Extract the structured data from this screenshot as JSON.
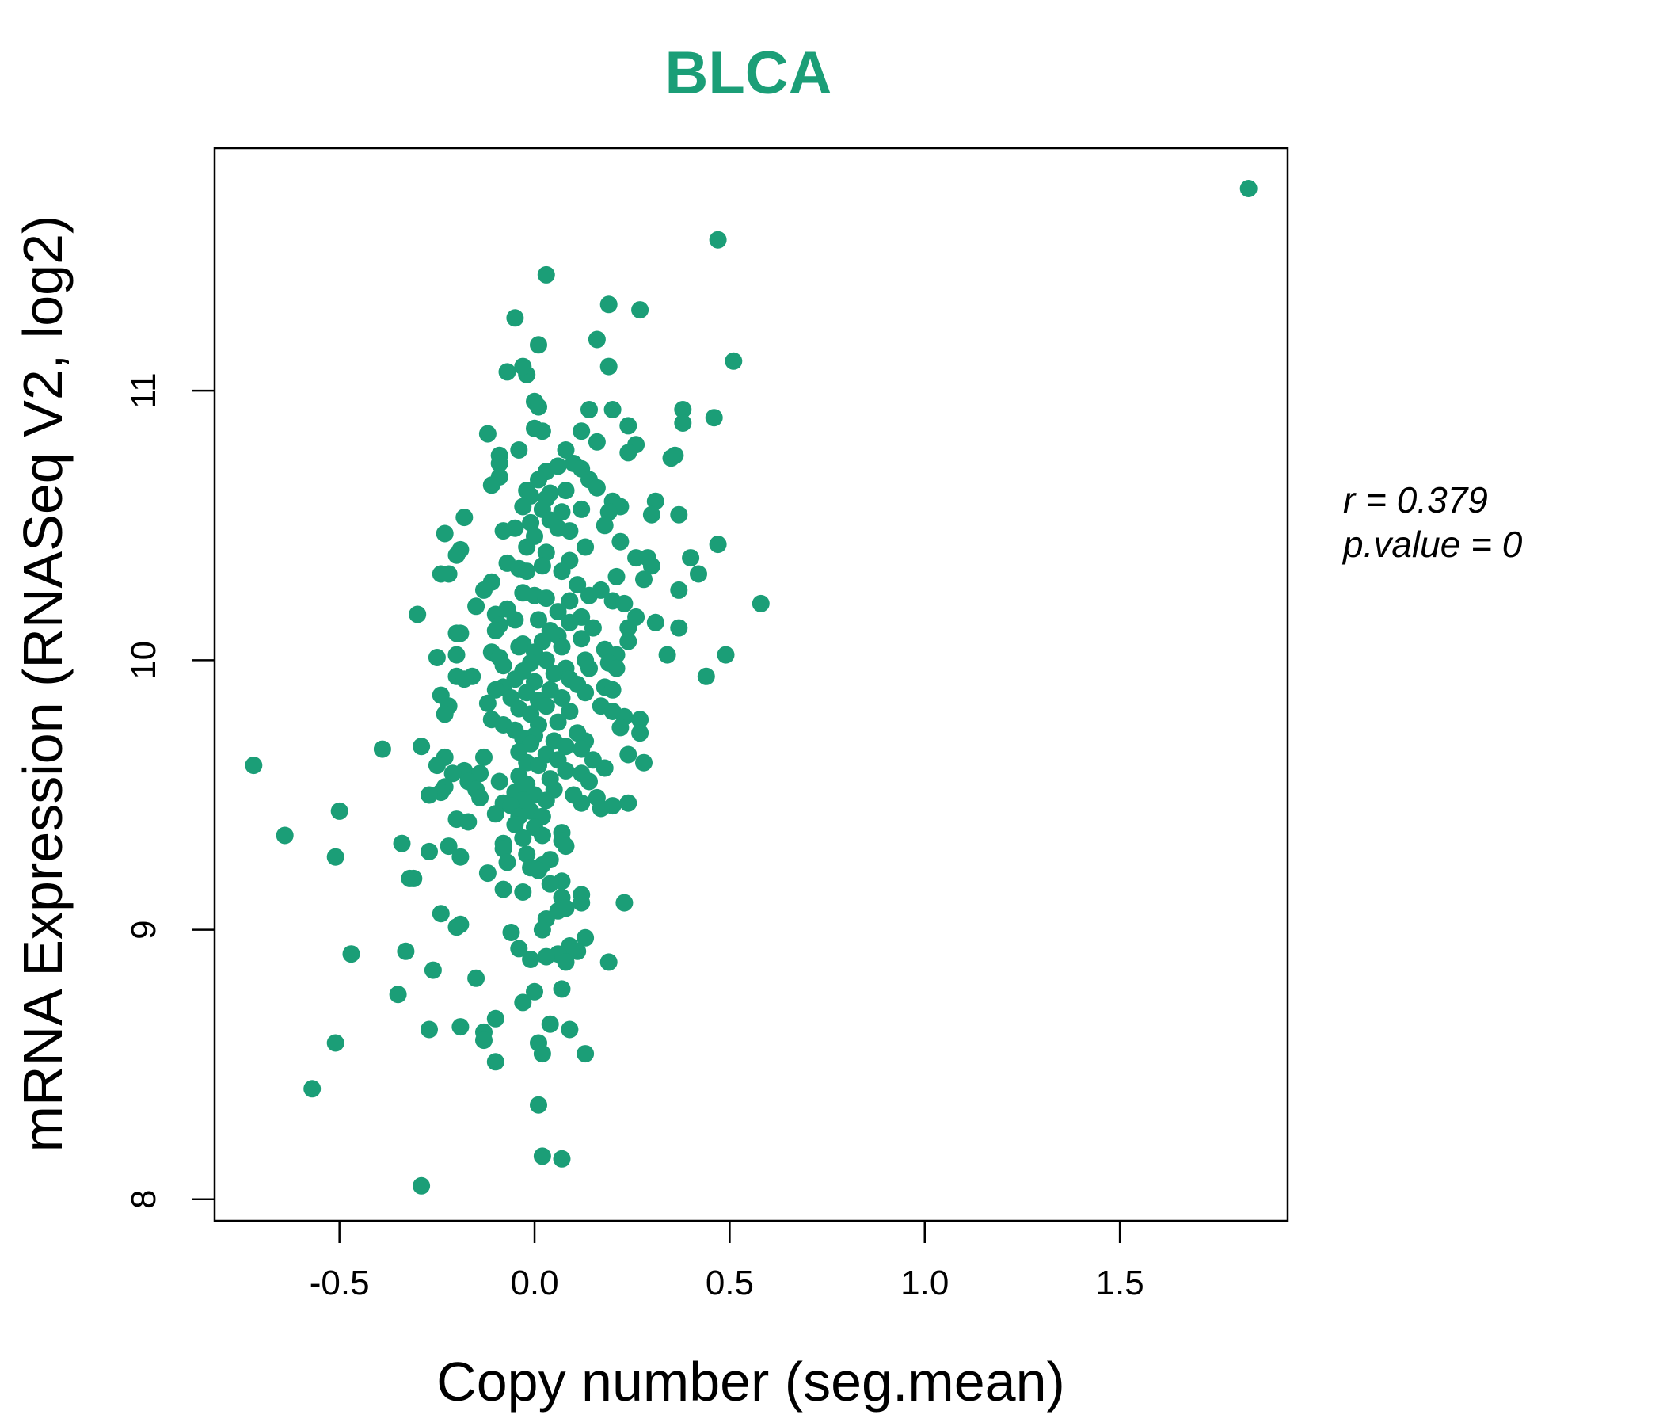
{
  "chart_data": {
    "type": "scatter",
    "title": "BLCA",
    "xlabel": "Copy number (seg.mean)",
    "ylabel": "mRNA Expression (RNASeq V2, log2)",
    "xlim": [
      -0.82,
      1.93
    ],
    "ylim": [
      7.92,
      11.9
    ],
    "x_ticks": [
      -0.5,
      0.0,
      0.5,
      1.0,
      1.5
    ],
    "x_tick_labels": [
      "-0.5",
      "0.0",
      "0.5",
      "1.0",
      "1.5"
    ],
    "y_ticks": [
      8,
      9,
      10,
      11
    ],
    "y_tick_labels": [
      "8",
      "9",
      "10",
      "11"
    ],
    "grid": false,
    "stats": {
      "r_label": "r = 0.379",
      "p_label": "p.value = 0"
    },
    "color": "#1b9e77",
    "points": [
      {
        "x": 1.83,
        "y": 11.75
      },
      {
        "x": 0.47,
        "y": 11.56
      },
      {
        "x": 0.03,
        "y": 11.43
      },
      {
        "x": 0.19,
        "y": 11.32
      },
      {
        "x": 0.27,
        "y": 11.3
      },
      {
        "x": -0.05,
        "y": 11.27
      },
      {
        "x": 0.16,
        "y": 11.19
      },
      {
        "x": 0.01,
        "y": 11.17
      },
      {
        "x": 0.51,
        "y": 11.11
      },
      {
        "x": 0.19,
        "y": 11.09
      },
      {
        "x": -0.07,
        "y": 11.07
      },
      {
        "x": -0.02,
        "y": 11.06
      },
      {
        "x": -0.03,
        "y": 11.09
      },
      {
        "x": 0.0,
        "y": 10.96
      },
      {
        "x": 0.01,
        "y": 10.94
      },
      {
        "x": 0.14,
        "y": 10.93
      },
      {
        "x": 0.2,
        "y": 10.93
      },
      {
        "x": 0.38,
        "y": 10.93
      },
      {
        "x": 0.46,
        "y": 10.9
      },
      {
        "x": 0.24,
        "y": 10.87
      },
      {
        "x": 0.38,
        "y": 10.88
      },
      {
        "x": 0.0,
        "y": 10.86
      },
      {
        "x": 0.02,
        "y": 10.85
      },
      {
        "x": 0.12,
        "y": 10.85
      },
      {
        "x": -0.12,
        "y": 10.84
      },
      {
        "x": 0.16,
        "y": 10.81
      },
      {
        "x": 0.26,
        "y": 10.8
      },
      {
        "x": -0.04,
        "y": 10.78
      },
      {
        "x": 0.08,
        "y": 10.78
      },
      {
        "x": 0.24,
        "y": 10.77
      },
      {
        "x": 0.36,
        "y": 10.76
      },
      {
        "x": -0.09,
        "y": 10.76
      },
      {
        "x": 0.35,
        "y": 10.75
      },
      {
        "x": 0.1,
        "y": 10.73
      },
      {
        "x": -0.09,
        "y": 10.73
      },
      {
        "x": 0.06,
        "y": 10.72
      },
      {
        "x": 0.12,
        "y": 10.71
      },
      {
        "x": 0.03,
        "y": 10.7
      },
      {
        "x": -0.09,
        "y": 10.68
      },
      {
        "x": 0.14,
        "y": 10.67
      },
      {
        "x": 0.01,
        "y": 10.67
      },
      {
        "x": -0.11,
        "y": 10.65
      },
      {
        "x": 0.16,
        "y": 10.64
      },
      {
        "x": -0.02,
        "y": 10.63
      },
      {
        "x": 0.08,
        "y": 10.63
      },
      {
        "x": 0.04,
        "y": 10.62
      },
      {
        "x": -0.01,
        "y": 10.61
      },
      {
        "x": 0.03,
        "y": 10.6
      },
      {
        "x": 0.2,
        "y": 10.59
      },
      {
        "x": 0.31,
        "y": 10.59
      },
      {
        "x": 0.22,
        "y": 10.57
      },
      {
        "x": -0.03,
        "y": 10.57
      },
      {
        "x": 0.02,
        "y": 10.56
      },
      {
        "x": 0.12,
        "y": 10.56
      },
      {
        "x": 0.07,
        "y": 10.55
      },
      {
        "x": 0.19,
        "y": 10.55
      },
      {
        "x": 0.3,
        "y": 10.54
      },
      {
        "x": 0.37,
        "y": 10.54
      },
      {
        "x": -0.18,
        "y": 10.53
      },
      {
        "x": 0.04,
        "y": 10.52
      },
      {
        "x": -0.01,
        "y": 10.51
      },
      {
        "x": 0.18,
        "y": 10.5
      },
      {
        "x": -0.05,
        "y": 10.49
      },
      {
        "x": 0.06,
        "y": 10.49
      },
      {
        "x": -0.08,
        "y": 10.48
      },
      {
        "x": 0.09,
        "y": 10.48
      },
      {
        "x": -0.23,
        "y": 10.47
      },
      {
        "x": 0.0,
        "y": 10.46
      },
      {
        "x": 0.22,
        "y": 10.44
      },
      {
        "x": 0.47,
        "y": 10.43
      },
      {
        "x": -0.02,
        "y": 10.42
      },
      {
        "x": 0.13,
        "y": 10.42
      },
      {
        "x": -0.19,
        "y": 10.41
      },
      {
        "x": 0.03,
        "y": 10.4
      },
      {
        "x": -0.2,
        "y": 10.39
      },
      {
        "x": 0.26,
        "y": 10.38
      },
      {
        "x": 0.29,
        "y": 10.38
      },
      {
        "x": 0.4,
        "y": 10.38
      },
      {
        "x": 0.09,
        "y": 10.37
      },
      {
        "x": -0.07,
        "y": 10.36
      },
      {
        "x": 0.02,
        "y": 10.35
      },
      {
        "x": 0.3,
        "y": 10.35
      },
      {
        "x": -0.04,
        "y": 10.34
      },
      {
        "x": -0.02,
        "y": 10.33
      },
      {
        "x": 0.07,
        "y": 10.33
      },
      {
        "x": -0.24,
        "y": 10.32
      },
      {
        "x": -0.22,
        "y": 10.32
      },
      {
        "x": 0.42,
        "y": 10.32
      },
      {
        "x": 0.21,
        "y": 10.31
      },
      {
        "x": 0.28,
        "y": 10.3
      },
      {
        "x": -0.11,
        "y": 10.29
      },
      {
        "x": 0.11,
        "y": 10.28
      },
      {
        "x": -0.13,
        "y": 10.26
      },
      {
        "x": 0.37,
        "y": 10.26
      },
      {
        "x": 0.17,
        "y": 10.26
      },
      {
        "x": -0.03,
        "y": 10.25
      },
      {
        "x": 0.14,
        "y": 10.24
      },
      {
        "x": 0.0,
        "y": 10.24
      },
      {
        "x": 0.03,
        "y": 10.23
      },
      {
        "x": 0.09,
        "y": 10.22
      },
      {
        "x": 0.2,
        "y": 10.22
      },
      {
        "x": 0.23,
        "y": 10.21
      },
      {
        "x": 0.58,
        "y": 10.21
      },
      {
        "x": -0.15,
        "y": 10.2
      },
      {
        "x": -0.07,
        "y": 10.19
      },
      {
        "x": 0.06,
        "y": 10.18
      },
      {
        "x": -0.1,
        "y": 10.17
      },
      {
        "x": -0.3,
        "y": 10.17
      },
      {
        "x": 0.12,
        "y": 10.16
      },
      {
        "x": 0.26,
        "y": 10.16
      },
      {
        "x": -0.05,
        "y": 10.15
      },
      {
        "x": 0.01,
        "y": 10.15
      },
      {
        "x": 0.31,
        "y": 10.14
      },
      {
        "x": 0.09,
        "y": 10.14
      },
      {
        "x": -0.09,
        "y": 10.13
      },
      {
        "x": 0.15,
        "y": 10.12
      },
      {
        "x": 0.24,
        "y": 10.12
      },
      {
        "x": 0.37,
        "y": 10.12
      },
      {
        "x": -0.1,
        "y": 10.11
      },
      {
        "x": 0.04,
        "y": 10.11
      },
      {
        "x": -0.19,
        "y": 10.1
      },
      {
        "x": -0.2,
        "y": 10.1
      },
      {
        "x": 0.06,
        "y": 10.09
      },
      {
        "x": 0.12,
        "y": 10.08
      },
      {
        "x": 0.02,
        "y": 10.07
      },
      {
        "x": 0.24,
        "y": 10.07
      },
      {
        "x": -0.03,
        "y": 10.06
      },
      {
        "x": -0.04,
        "y": 10.05
      },
      {
        "x": 0.07,
        "y": 10.05
      },
      {
        "x": 0.18,
        "y": 10.04
      },
      {
        "x": -0.11,
        "y": 10.03
      },
      {
        "x": 0.0,
        "y": 10.03
      },
      {
        "x": 0.21,
        "y": 10.02
      },
      {
        "x": -0.2,
        "y": 10.02
      },
      {
        "x": 0.34,
        "y": 10.02
      },
      {
        "x": 0.49,
        "y": 10.02
      },
      {
        "x": -0.25,
        "y": 10.01
      },
      {
        "x": -0.09,
        "y": 10.01
      },
      {
        "x": 0.03,
        "y": 10.0
      },
      {
        "x": 0.13,
        "y": 10.0
      },
      {
        "x": -0.01,
        "y": 9.99
      },
      {
        "x": 0.19,
        "y": 9.99
      },
      {
        "x": -0.08,
        "y": 9.98
      },
      {
        "x": 0.08,
        "y": 9.97
      },
      {
        "x": 0.14,
        "y": 9.97
      },
      {
        "x": 0.21,
        "y": 9.97
      },
      {
        "x": -0.03,
        "y": 9.96
      },
      {
        "x": 0.05,
        "y": 9.95
      },
      {
        "x": -0.2,
        "y": 9.94
      },
      {
        "x": -0.16,
        "y": 9.94
      },
      {
        "x": 0.44,
        "y": 9.94
      },
      {
        "x": -0.05,
        "y": 9.93
      },
      {
        "x": 0.09,
        "y": 9.93
      },
      {
        "x": -0.18,
        "y": 9.93
      },
      {
        "x": 0.0,
        "y": 9.92
      },
      {
        "x": 0.11,
        "y": 9.91
      },
      {
        "x": -0.08,
        "y": 9.9
      },
      {
        "x": 0.18,
        "y": 9.9
      },
      {
        "x": 0.04,
        "y": 9.89
      },
      {
        "x": 0.2,
        "y": 9.89
      },
      {
        "x": -0.1,
        "y": 9.89
      },
      {
        "x": -0.02,
        "y": 9.88
      },
      {
        "x": 0.13,
        "y": 9.88
      },
      {
        "x": -0.24,
        "y": 9.87
      },
      {
        "x": 0.07,
        "y": 9.86
      },
      {
        "x": -0.06,
        "y": 9.86
      },
      {
        "x": 0.01,
        "y": 9.85
      },
      {
        "x": -0.12,
        "y": 9.84
      },
      {
        "x": -0.22,
        "y": 9.83
      },
      {
        "x": 0.03,
        "y": 9.83
      },
      {
        "x": 0.17,
        "y": 9.83
      },
      {
        "x": -0.04,
        "y": 9.82
      },
      {
        "x": 0.09,
        "y": 9.81
      },
      {
        "x": 0.2,
        "y": 9.81
      },
      {
        "x": -0.23,
        "y": 9.8
      },
      {
        "x": -0.01,
        "y": 9.8
      },
      {
        "x": 0.23,
        "y": 9.79
      },
      {
        "x": 0.27,
        "y": 9.78
      },
      {
        "x": -0.11,
        "y": 9.78
      },
      {
        "x": 0.06,
        "y": 9.77
      },
      {
        "x": 0.01,
        "y": 9.76
      },
      {
        "x": -0.08,
        "y": 9.76
      },
      {
        "x": 0.22,
        "y": 9.75
      },
      {
        "x": -0.05,
        "y": 9.74
      },
      {
        "x": 0.11,
        "y": 9.73
      },
      {
        "x": 0.27,
        "y": 9.73
      },
      {
        "x": 0.0,
        "y": 9.72
      },
      {
        "x": -0.03,
        "y": 9.71
      },
      {
        "x": 0.05,
        "y": 9.7
      },
      {
        "x": 0.13,
        "y": 9.7
      },
      {
        "x": -0.01,
        "y": 9.69
      },
      {
        "x": -0.29,
        "y": 9.68
      },
      {
        "x": 0.08,
        "y": 9.68
      },
      {
        "x": -0.39,
        "y": 9.67
      },
      {
        "x": 0.12,
        "y": 9.67
      },
      {
        "x": -0.04,
        "y": 9.66
      },
      {
        "x": 0.03,
        "y": 9.65
      },
      {
        "x": 0.24,
        "y": 9.65
      },
      {
        "x": -0.23,
        "y": 9.64
      },
      {
        "x": -0.13,
        "y": 9.64
      },
      {
        "x": 0.06,
        "y": 9.63
      },
      {
        "x": 0.15,
        "y": 9.63
      },
      {
        "x": -0.02,
        "y": 9.62
      },
      {
        "x": -0.25,
        "y": 9.61
      },
      {
        "x": 0.28,
        "y": 9.62
      },
      {
        "x": -0.72,
        "y": 9.61
      },
      {
        "x": 0.01,
        "y": 9.61
      },
      {
        "x": 0.18,
        "y": 9.6
      },
      {
        "x": -0.18,
        "y": 9.59
      },
      {
        "x": 0.08,
        "y": 9.59
      },
      {
        "x": -0.14,
        "y": 9.58
      },
      {
        "x": 0.12,
        "y": 9.58
      },
      {
        "x": -0.21,
        "y": 9.58
      },
      {
        "x": -0.04,
        "y": 9.57
      },
      {
        "x": 0.04,
        "y": 9.56
      },
      {
        "x": -0.09,
        "y": 9.55
      },
      {
        "x": -0.17,
        "y": 9.55
      },
      {
        "x": 0.14,
        "y": 9.55
      },
      {
        "x": -0.02,
        "y": 9.54
      },
      {
        "x": -0.23,
        "y": 9.53
      },
      {
        "x": 0.05,
        "y": 9.52
      },
      {
        "x": -0.15,
        "y": 9.52
      },
      {
        "x": -0.24,
        "y": 9.51
      },
      {
        "x": -0.05,
        "y": 9.51
      },
      {
        "x": 0.1,
        "y": 9.5
      },
      {
        "x": -0.27,
        "y": 9.5
      },
      {
        "x": 0.0,
        "y": 9.5
      },
      {
        "x": -0.14,
        "y": 9.49
      },
      {
        "x": 0.16,
        "y": 9.49
      },
      {
        "x": -0.03,
        "y": 9.48
      },
      {
        "x": 0.03,
        "y": 9.48
      },
      {
        "x": 0.12,
        "y": 9.47
      },
      {
        "x": -0.08,
        "y": 9.47
      },
      {
        "x": 0.24,
        "y": 9.47
      },
      {
        "x": 0.2,
        "y": 9.46
      },
      {
        "x": -0.06,
        "y": 9.46
      },
      {
        "x": 0.17,
        "y": 9.45
      },
      {
        "x": -0.5,
        "y": 9.44
      },
      {
        "x": -0.01,
        "y": 9.44
      },
      {
        "x": -0.1,
        "y": 9.43
      },
      {
        "x": 0.02,
        "y": 9.42
      },
      {
        "x": -0.04,
        "y": 9.42
      },
      {
        "x": -0.2,
        "y": 9.41
      },
      {
        "x": -0.17,
        "y": 9.4
      },
      {
        "x": -0.05,
        "y": 9.39
      },
      {
        "x": 0.0,
        "y": 9.38
      },
      {
        "x": 0.07,
        "y": 9.36
      },
      {
        "x": 0.02,
        "y": 9.35
      },
      {
        "x": -0.64,
        "y": 9.35
      },
      {
        "x": -0.03,
        "y": 9.34
      },
      {
        "x": 0.07,
        "y": 9.33
      },
      {
        "x": -0.34,
        "y": 9.32
      },
      {
        "x": -0.08,
        "y": 9.32
      },
      {
        "x": -0.22,
        "y": 9.31
      },
      {
        "x": 0.08,
        "y": 9.31
      },
      {
        "x": -0.08,
        "y": 9.3
      },
      {
        "x": -0.27,
        "y": 9.29
      },
      {
        "x": -0.02,
        "y": 9.28
      },
      {
        "x": -0.51,
        "y": 9.27
      },
      {
        "x": -0.19,
        "y": 9.27
      },
      {
        "x": 0.04,
        "y": 9.26
      },
      {
        "x": -0.07,
        "y": 9.25
      },
      {
        "x": 0.02,
        "y": 9.24
      },
      {
        "x": -0.01,
        "y": 9.23
      },
      {
        "x": 0.01,
        "y": 9.22
      },
      {
        "x": -0.12,
        "y": 9.21
      },
      {
        "x": -0.32,
        "y": 9.19
      },
      {
        "x": -0.31,
        "y": 9.19
      },
      {
        "x": 0.07,
        "y": 9.18
      },
      {
        "x": 0.04,
        "y": 9.17
      },
      {
        "x": -0.08,
        "y": 9.15
      },
      {
        "x": -0.03,
        "y": 9.14
      },
      {
        "x": 0.12,
        "y": 9.13
      },
      {
        "x": 0.07,
        "y": 9.12
      },
      {
        "x": 0.12,
        "y": 9.1
      },
      {
        "x": 0.23,
        "y": 9.1
      },
      {
        "x": 0.08,
        "y": 9.08
      },
      {
        "x": 0.06,
        "y": 9.07
      },
      {
        "x": -0.24,
        "y": 9.06
      },
      {
        "x": 0.03,
        "y": 9.04
      },
      {
        "x": -0.19,
        "y": 9.02
      },
      {
        "x": -0.2,
        "y": 9.01
      },
      {
        "x": 0.02,
        "y": 9.0
      },
      {
        "x": -0.06,
        "y": 8.99
      },
      {
        "x": 0.13,
        "y": 8.97
      },
      {
        "x": 0.09,
        "y": 8.94
      },
      {
        "x": -0.04,
        "y": 8.93
      },
      {
        "x": 0.11,
        "y": 8.92
      },
      {
        "x": -0.33,
        "y": 8.92
      },
      {
        "x": -0.47,
        "y": 8.91
      },
      {
        "x": 0.06,
        "y": 8.91
      },
      {
        "x": 0.03,
        "y": 8.9
      },
      {
        "x": -0.01,
        "y": 8.89
      },
      {
        "x": 0.19,
        "y": 8.88
      },
      {
        "x": 0.08,
        "y": 8.88
      },
      {
        "x": -0.26,
        "y": 8.85
      },
      {
        "x": -0.15,
        "y": 8.82
      },
      {
        "x": 0.07,
        "y": 8.78
      },
      {
        "x": 0.0,
        "y": 8.77
      },
      {
        "x": -0.35,
        "y": 8.76
      },
      {
        "x": -0.03,
        "y": 8.73
      },
      {
        "x": -0.1,
        "y": 8.67
      },
      {
        "x": 0.04,
        "y": 8.65
      },
      {
        "x": -0.27,
        "y": 8.63
      },
      {
        "x": -0.19,
        "y": 8.64
      },
      {
        "x": 0.09,
        "y": 8.63
      },
      {
        "x": -0.13,
        "y": 8.62
      },
      {
        "x": -0.13,
        "y": 8.59
      },
      {
        "x": 0.01,
        "y": 8.58
      },
      {
        "x": -0.51,
        "y": 8.58
      },
      {
        "x": 0.02,
        "y": 8.54
      },
      {
        "x": 0.13,
        "y": 8.54
      },
      {
        "x": -0.1,
        "y": 8.51
      },
      {
        "x": -0.57,
        "y": 8.41
      },
      {
        "x": 0.01,
        "y": 8.35
      },
      {
        "x": 0.02,
        "y": 8.16
      },
      {
        "x": 0.07,
        "y": 8.15
      },
      {
        "x": -0.29,
        "y": 8.05
      }
    ]
  }
}
